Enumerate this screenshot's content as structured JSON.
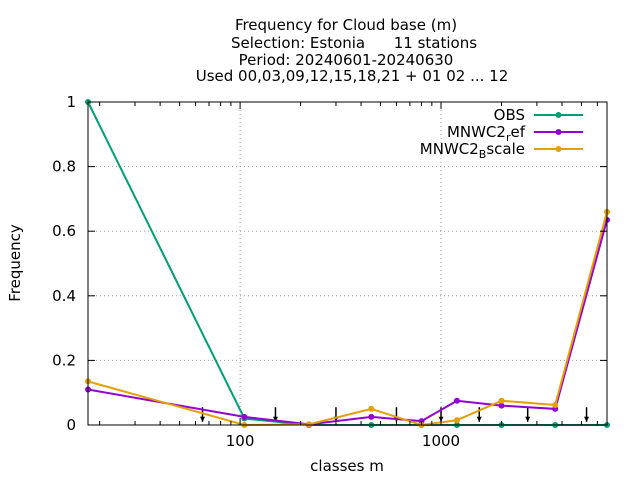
{
  "chart_data": {
    "type": "line",
    "title": [
      "Frequency  for Cloud base (m)",
      "Selection: Estonia      11 stations",
      "Period: 20240601-20240630",
      "Used 00,03,09,12,15,18,21 + 01 02 ... 12"
    ],
    "xlabel": "classes m",
    "ylabel": "Frequency",
    "x_scale": "log",
    "xlim": [
      17.5,
      6700
    ],
    "ylim": [
      0,
      1
    ],
    "x_ticks": [
      100,
      1000
    ],
    "x_tick_labels": [
      "100",
      "1000"
    ],
    "y_ticks": [
      0,
      0.2,
      0.4,
      0.6,
      0.8,
      1
    ],
    "y_tick_labels": [
      "0",
      "0.2",
      "0.4",
      "0.6",
      "0.8",
      "1"
    ],
    "grid": true,
    "legend_position": "top-right",
    "x": [
      17.5,
      105,
      220,
      450,
      800,
      1200,
      2000,
      3700,
      6700
    ],
    "series": [
      {
        "name": "OBS",
        "name_parts": [
          [
            "OBS",
            "base"
          ]
        ],
        "color": "#009e73",
        "values": [
          1.0,
          0.02,
          0.0,
          0.0,
          0.0,
          0.0,
          0.0,
          0.0,
          0.0
        ]
      },
      {
        "name": "MNWC2_ref",
        "name_parts": [
          [
            "MNWC2",
            "base"
          ],
          [
            "r",
            "sub"
          ],
          [
            "ef",
            "base"
          ]
        ],
        "color": "#9400d3",
        "values": [
          0.11,
          0.025,
          0.002,
          0.025,
          0.012,
          0.075,
          0.06,
          0.05,
          0.635
        ]
      },
      {
        "name": "MNWC2_Bscale",
        "name_parts": [
          [
            "MNWC2",
            "base"
          ],
          [
            "B",
            "sub"
          ],
          [
            "scale",
            "base"
          ]
        ],
        "color": "#e69f00",
        "values": [
          0.135,
          0.0,
          0.002,
          0.05,
          0.0,
          0.015,
          0.075,
          0.062,
          0.66
        ]
      }
    ],
    "arrows": {
      "x": [
        65,
        150,
        300,
        600,
        1000,
        1550,
        2700,
        5300
      ],
      "y_from": 0.055,
      "y_to": 0.01
    }
  }
}
